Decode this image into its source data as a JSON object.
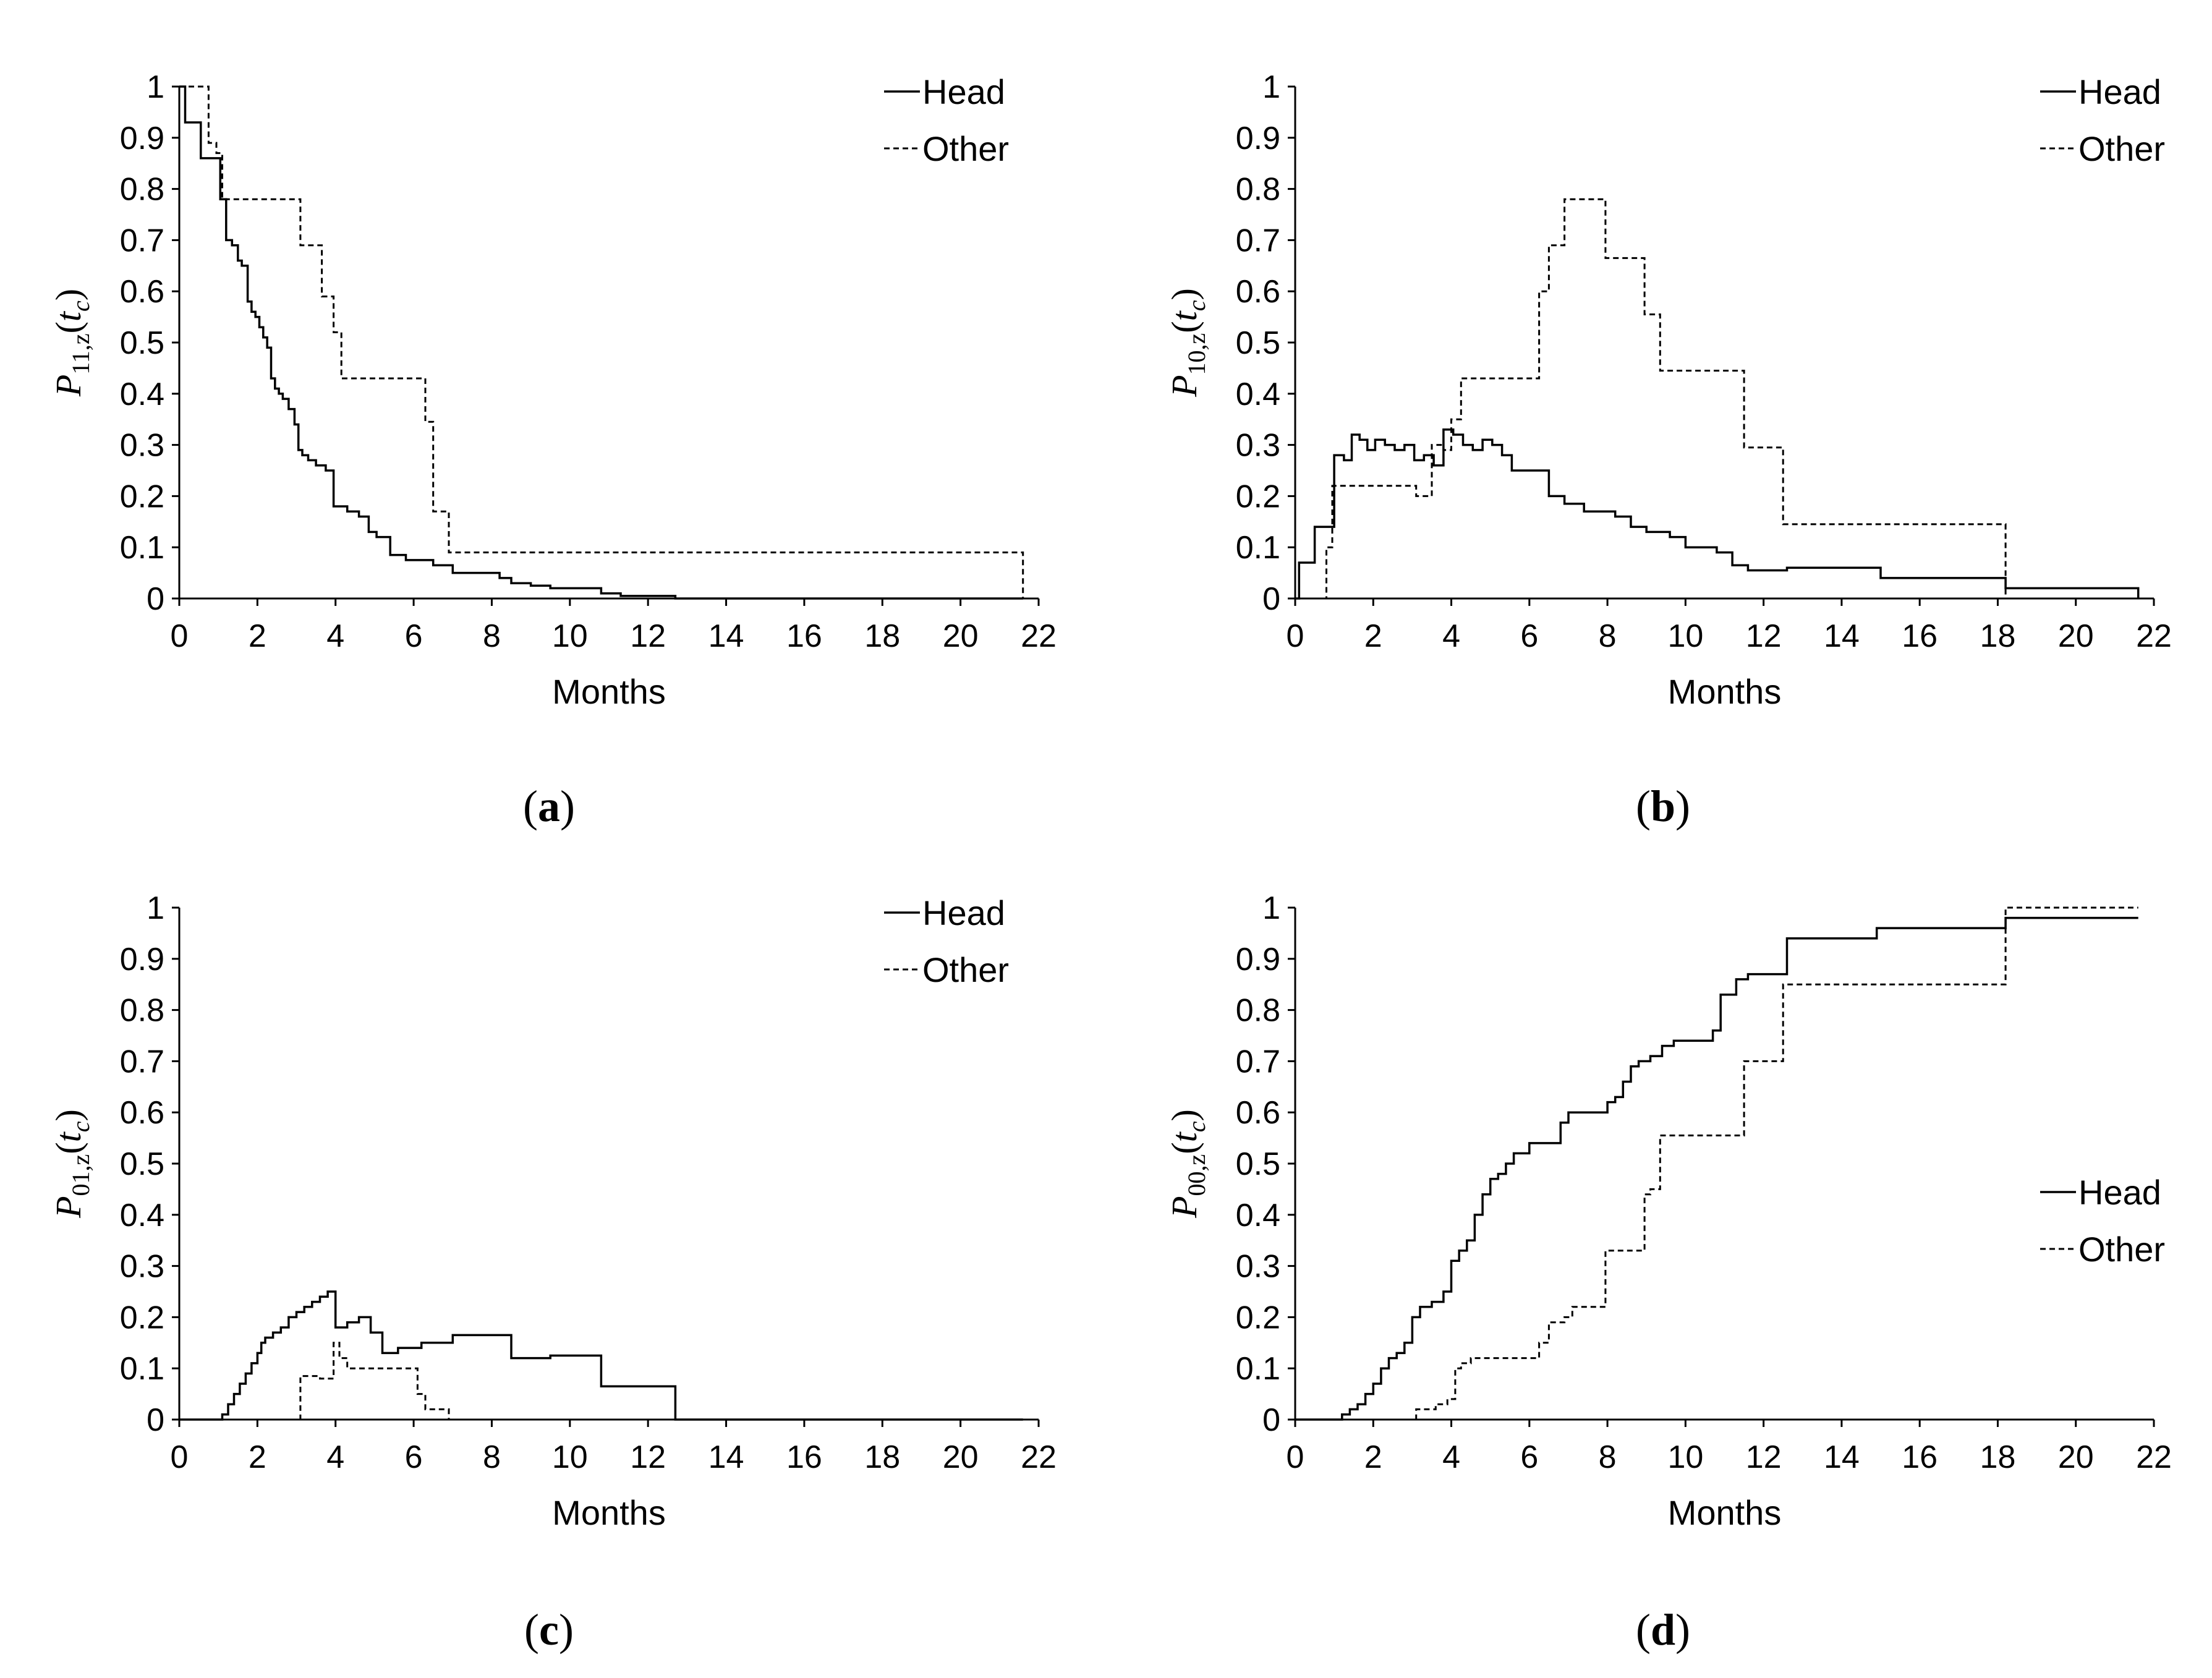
{
  "chart_data": [
    {
      "type": "line",
      "caption_letter": "a",
      "ylabel": {
        "symbol": "P",
        "subscript": "11,z",
        "arg_symbol": "t",
        "arg_subscript": "c"
      },
      "xlabel": "Months",
      "xlim": [
        0,
        22
      ],
      "ylim": [
        0,
        1
      ],
      "xticks": [
        "0",
        "2",
        "4",
        "6",
        "8",
        "10",
        "12",
        "14",
        "16",
        "18",
        "20",
        "22"
      ],
      "yticks": [
        "0",
        "0.1",
        "0.2",
        "0.3",
        "0.4",
        "0.5",
        "0.6",
        "0.7",
        "0.8",
        "0.9",
        "1"
      ],
      "legend_position": "top-right",
      "series": [
        {
          "name": "Head",
          "style": "solid",
          "step": true,
          "x": [
            0,
            0.15,
            0.55,
            1.05,
            1.2,
            1.35,
            1.5,
            1.6,
            1.75,
            1.85,
            1.95,
            2.05,
            2.15,
            2.25,
            2.35,
            2.45,
            2.55,
            2.65,
            2.8,
            2.95,
            3.05,
            3.15,
            3.3,
            3.5,
            3.75,
            3.95,
            4.3,
            4.6,
            4.85,
            5.05,
            5.4,
            5.8,
            6.5,
            7.0,
            8.2,
            8.5,
            9.0,
            9.5,
            10.8,
            11.3,
            12.7,
            21.6
          ],
          "y": [
            1,
            0.93,
            0.86,
            0.78,
            0.7,
            0.69,
            0.66,
            0.65,
            0.58,
            0.56,
            0.55,
            0.53,
            0.51,
            0.49,
            0.43,
            0.41,
            0.4,
            0.39,
            0.37,
            0.34,
            0.29,
            0.28,
            0.27,
            0.26,
            0.25,
            0.18,
            0.17,
            0.16,
            0.13,
            0.12,
            0.085,
            0.075,
            0.065,
            0.05,
            0.04,
            0.03,
            0.025,
            0.02,
            0.01,
            0.005,
            0,
            0
          ]
        },
        {
          "name": "Other",
          "style": "dashed",
          "step": true,
          "x": [
            0,
            0.75,
            0.95,
            1.1,
            3.1,
            3.65,
            3.95,
            4.15,
            6.3,
            6.5,
            6.9,
            21.6
          ],
          "y": [
            1,
            0.89,
            0.87,
            0.78,
            0.69,
            0.59,
            0.52,
            0.43,
            0.345,
            0.17,
            0.09,
            0
          ]
        }
      ]
    },
    {
      "type": "line",
      "caption_letter": "b",
      "ylabel": {
        "symbol": "P",
        "subscript": "10,z",
        "arg_symbol": "t",
        "arg_subscript": "c"
      },
      "xlabel": "Months",
      "xlim": [
        0,
        22
      ],
      "ylim": [
        0,
        1
      ],
      "xticks": [
        "0",
        "2",
        "4",
        "6",
        "8",
        "10",
        "12",
        "14",
        "16",
        "18",
        "20",
        "22"
      ],
      "yticks": [
        "0",
        "0.1",
        "0.2",
        "0.3",
        "0.4",
        "0.5",
        "0.6",
        "0.7",
        "0.8",
        "0.9",
        "1"
      ],
      "legend_position": "top-right",
      "series": [
        {
          "name": "Head",
          "style": "solid",
          "step": true,
          "x": [
            0,
            0.1,
            0.5,
            1.0,
            1.25,
            1.45,
            1.65,
            1.85,
            2.05,
            2.3,
            2.55,
            2.8,
            3.05,
            3.3,
            3.55,
            3.8,
            4.05,
            4.3,
            4.55,
            4.8,
            5.05,
            5.3,
            5.55,
            5.8,
            6.1,
            6.5,
            6.9,
            7.4,
            8.2,
            8.6,
            9.0,
            9.6,
            10.0,
            10.8,
            11.2,
            11.6,
            12.6,
            15.0,
            18.2,
            21.6
          ],
          "y": [
            0,
            0.07,
            0.14,
            0.28,
            0.27,
            0.32,
            0.31,
            0.29,
            0.31,
            0.3,
            0.29,
            0.3,
            0.27,
            0.28,
            0.26,
            0.33,
            0.32,
            0.3,
            0.29,
            0.31,
            0.3,
            0.28,
            0.25,
            0.25,
            0.25,
            0.2,
            0.185,
            0.17,
            0.16,
            0.14,
            0.13,
            0.12,
            0.1,
            0.09,
            0.065,
            0.055,
            0.06,
            0.04,
            0.02,
            0.0
          ]
        },
        {
          "name": "Other",
          "style": "dashed",
          "step": true,
          "x": [
            0,
            0.8,
            0.95,
            1.1,
            3.1,
            3.5,
            3.8,
            4.0,
            4.25,
            6.25,
            6.5,
            6.9,
            7.95,
            8.95,
            9.35,
            11.5,
            12.5,
            18.2,
            21.6
          ],
          "y": [
            0,
            0.1,
            0.22,
            0.22,
            0.2,
            0.3,
            0.29,
            0.35,
            0.43,
            0.6,
            0.69,
            0.78,
            0.665,
            0.555,
            0.445,
            0.295,
            0.145,
            0.0,
            0.0
          ]
        }
      ]
    },
    {
      "type": "line",
      "caption_letter": "c",
      "ylabel": {
        "symbol": "P",
        "subscript": "01,z",
        "arg_symbol": "t",
        "arg_subscript": "c"
      },
      "xlabel": "Months",
      "xlim": [
        0,
        22
      ],
      "ylim": [
        0,
        1
      ],
      "xticks": [
        "0",
        "2",
        "4",
        "6",
        "8",
        "10",
        "12",
        "14",
        "16",
        "18",
        "20",
        "22"
      ],
      "yticks": [
        "0",
        "0.1",
        "0.2",
        "0.3",
        "0.4",
        "0.5",
        "0.6",
        "0.7",
        "0.8",
        "0.9",
        "1"
      ],
      "legend_position": "top-right",
      "series": [
        {
          "name": "Head",
          "style": "solid",
          "step": true,
          "x": [
            0,
            1.1,
            1.25,
            1.4,
            1.55,
            1.7,
            1.85,
            2.0,
            2.1,
            2.2,
            2.4,
            2.6,
            2.8,
            3.0,
            3.2,
            3.4,
            3.6,
            3.8,
            4.0,
            4.3,
            4.6,
            4.9,
            5.2,
            5.6,
            6.2,
            7.0,
            8.5,
            8.9,
            9.5,
            10.8,
            11.3,
            12.7,
            21.6
          ],
          "y": [
            0,
            0.01,
            0.03,
            0.05,
            0.07,
            0.09,
            0.11,
            0.13,
            0.15,
            0.16,
            0.17,
            0.18,
            0.2,
            0.21,
            0.22,
            0.23,
            0.24,
            0.25,
            0.18,
            0.19,
            0.2,
            0.17,
            0.13,
            0.14,
            0.15,
            0.165,
            0.12,
            0.12,
            0.125,
            0.065,
            0.065,
            0.0,
            0.0
          ]
        },
        {
          "name": "Other",
          "style": "dashed",
          "step": true,
          "x": [
            0,
            3.1,
            3.6,
            3.95,
            4.1,
            4.3,
            6.1,
            6.3,
            6.9,
            21.6
          ],
          "y": [
            0,
            0.085,
            0.08,
            0.15,
            0.12,
            0.1,
            0.05,
            0.02,
            0.0,
            0.0
          ]
        }
      ]
    },
    {
      "type": "line",
      "caption_letter": "d",
      "ylabel": {
        "symbol": "P",
        "subscript": "00,z",
        "arg_symbol": "t",
        "arg_subscript": "c"
      },
      "xlabel": "Months",
      "xlim": [
        0,
        22
      ],
      "ylim": [
        0,
        1
      ],
      "xticks": [
        "0",
        "2",
        "4",
        "6",
        "8",
        "10",
        "12",
        "14",
        "16",
        "18",
        "20",
        "22"
      ],
      "yticks": [
        "0",
        "0.1",
        "0.2",
        "0.3",
        "0.4",
        "0.5",
        "0.6",
        "0.7",
        "0.8",
        "0.9",
        "1"
      ],
      "legend_position": "right",
      "series": [
        {
          "name": "Head",
          "style": "solid",
          "step": true,
          "x": [
            0,
            1.2,
            1.4,
            1.6,
            1.8,
            2.0,
            2.2,
            2.4,
            2.6,
            2.8,
            3.0,
            3.2,
            3.5,
            3.8,
            4.0,
            4.2,
            4.4,
            4.6,
            4.8,
            5.0,
            5.2,
            5.4,
            5.6,
            6.0,
            6.5,
            6.8,
            7.0,
            8.0,
            8.2,
            8.4,
            8.6,
            8.8,
            9.1,
            9.4,
            9.7,
            10.7,
            10.9,
            11.3,
            11.6,
            12.6,
            14.9,
            18.2,
            21.6
          ],
          "y": [
            0,
            0.01,
            0.02,
            0.03,
            0.05,
            0.07,
            0.1,
            0.12,
            0.13,
            0.15,
            0.2,
            0.22,
            0.23,
            0.25,
            0.31,
            0.33,
            0.35,
            0.4,
            0.44,
            0.47,
            0.48,
            0.5,
            0.52,
            0.54,
            0.54,
            0.58,
            0.6,
            0.62,
            0.63,
            0.66,
            0.69,
            0.7,
            0.71,
            0.73,
            0.74,
            0.76,
            0.83,
            0.86,
            0.87,
            0.94,
            0.96,
            0.98,
            0.98
          ]
        },
        {
          "name": "Other",
          "style": "dashed",
          "step": true,
          "x": [
            0,
            3.1,
            3.6,
            3.9,
            4.1,
            4.25,
            4.5,
            6.25,
            6.5,
            6.9,
            7.1,
            7.95,
            8.95,
            9.1,
            9.35,
            11.5,
            12.5,
            18.2,
            21.6
          ],
          "y": [
            0,
            0.02,
            0.03,
            0.04,
            0.1,
            0.11,
            0.12,
            0.15,
            0.19,
            0.2,
            0.22,
            0.33,
            0.44,
            0.45,
            0.555,
            0.7,
            0.85,
            1.0,
            1.0
          ]
        }
      ]
    }
  ],
  "captions": {
    "a": "(a)",
    "b": "(b)",
    "c": "(c)",
    "d": "(d)"
  }
}
